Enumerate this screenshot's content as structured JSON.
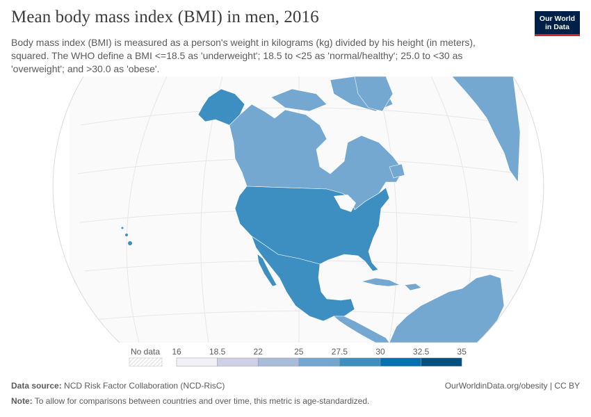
{
  "header": {
    "title": "Mean body mass index (BMI) in men, 2016",
    "subtitle": "Body mass index (BMI) is measured as a person's weight in kilograms (kg) divided by his height (in meters), squared. The WHO define a BMI <=18.5 as 'underweight'; 18.5 to <25 as 'normal/healthy'; 25.0 to <30 as 'overweight'; and >30.0 as 'obese'."
  },
  "logo": {
    "line1": "Our World",
    "line2": "in Data",
    "bg_color": "#002147",
    "accent_color": "#ce261e"
  },
  "legend": {
    "no_data_label": "No data",
    "ticks": [
      "16",
      "18.5",
      "22",
      "25",
      "27.5",
      "30",
      "32.5",
      "35"
    ],
    "bin_colors": [
      "#f2f1f8",
      "#cfd0e6",
      "#a9bddb",
      "#75a8d0",
      "#3d8fc2",
      "#0670b0",
      "#045080"
    ]
  },
  "regions": [
    {
      "name": "Alaska (United States)",
      "bmi_bin": 4
    },
    {
      "name": "Canada",
      "bmi_bin": 3
    },
    {
      "name": "United States",
      "bmi_bin": 4
    },
    {
      "name": "Mexico",
      "bmi_bin": 4
    },
    {
      "name": "Cuba",
      "bmi_bin": 3
    },
    {
      "name": "Central America",
      "bmi_bin": 3
    },
    {
      "name": "South America",
      "bmi_bin": 3
    },
    {
      "name": "Greenland",
      "bmi_bin": 3
    },
    {
      "name": "Russia",
      "bmi_bin": 3
    }
  ],
  "footer": {
    "source_label": "Data source:",
    "source_text": "NCD Risk Factor Collaboration (NCD-RisC)",
    "note_label": "Note:",
    "note_text": "To allow for comparisons between countries and over time, this metric is age-standardized.",
    "credit": "OurWorldinData.org/obesity | CC BY"
  }
}
